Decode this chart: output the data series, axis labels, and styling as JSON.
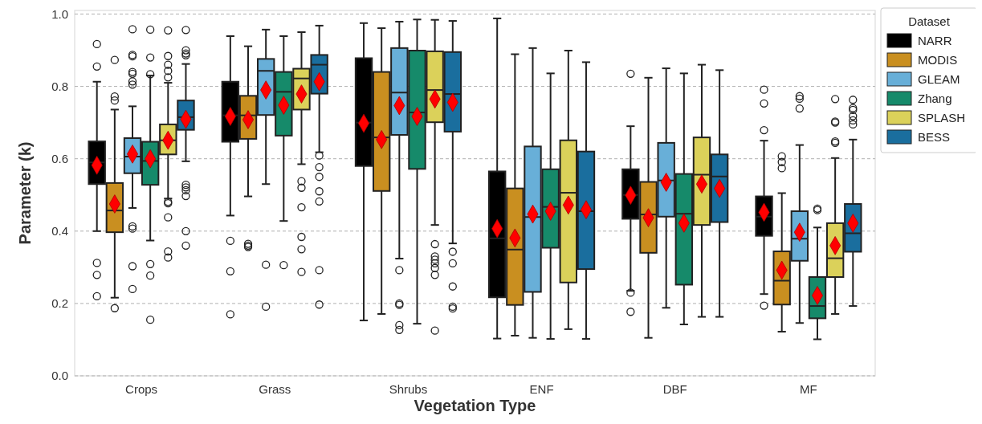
{
  "chart_data": {
    "type": "box",
    "xlabel": "Vegetation Type",
    "ylabel": "Parameter (k)",
    "legend_title": "Dataset",
    "legend": "top right",
    "grid": "y",
    "marker": "diamond",
    "categories": [
      "Crops",
      "Grass",
      "Shrubs",
      "ENF",
      "DBF",
      "MF"
    ],
    "ylim": [
      0,
      1.01
    ],
    "yticks": [
      {
        "value": 0,
        "label": "0.0"
      },
      {
        "value": 0.2,
        "label": "0.2"
      },
      {
        "value": 0.4,
        "label": "0.4"
      },
      {
        "value": 0.6,
        "label": "0.6"
      },
      {
        "value": 0.8,
        "label": "0.8"
      },
      {
        "value": 1,
        "label": "1.0"
      }
    ],
    "series": [
      {
        "name": "NARR",
        "color": "#000000",
        "boxes": [
          {
            "low": 0.4,
            "q1": 0.53,
            "median": 0.59,
            "q3": 0.648,
            "high": 0.813,
            "mean": 0.582,
            "outliers": [
              0.917,
              0.855,
              0.312,
              0.279,
              0.22
            ]
          },
          {
            "low": 0.443,
            "q1": 0.647,
            "median": 0.72,
            "q3": 0.813,
            "high": 0.939,
            "mean": 0.717,
            "outliers": [
              0.373,
              0.289,
              0.17
            ]
          },
          {
            "low": 0.153,
            "q1": 0.58,
            "median": 0.7,
            "q3": 0.878,
            "high": 0.975,
            "mean": 0.698
          },
          {
            "low": 0.103,
            "q1": 0.217,
            "median": 0.38,
            "q3": 0.565,
            "high": 0.988,
            "mean": 0.407
          },
          {
            "low": 0.235,
            "q1": 0.434,
            "median": 0.5,
            "q3": 0.571,
            "high": 0.69,
            "mean": 0.499,
            "outliers": [
              0.835,
              0.23,
              0.177
            ]
          },
          {
            "low": 0.226,
            "q1": 0.387,
            "median": 0.44,
            "q3": 0.496,
            "high": 0.65,
            "mean": 0.452,
            "outliers": [
              0.791,
              0.753,
              0.679,
              0.194
            ]
          }
        ]
      },
      {
        "name": "MODIS",
        "color": "#c98f20",
        "boxes": [
          {
            "low": 0.216,
            "q1": 0.397,
            "median": 0.457,
            "q3": 0.533,
            "high": 0.736,
            "mean": 0.475,
            "outliers": [
              0.873,
              0.772,
              0.761,
              0.187
            ]
          },
          {
            "low": 0.496,
            "q1": 0.655,
            "median": 0.72,
            "q3": 0.774,
            "high": 0.911,
            "mean": 0.708,
            "outliers": [
              0.365,
              0.36,
              0.356
            ]
          },
          {
            "low": 0.171,
            "q1": 0.511,
            "median": 0.659,
            "q3": 0.84,
            "high": 0.961,
            "mean": 0.653
          },
          {
            "low": 0.111,
            "q1": 0.196,
            "median": 0.349,
            "q3": 0.518,
            "high": 0.889,
            "mean": 0.381
          },
          {
            "low": 0.105,
            "q1": 0.34,
            "median": 0.446,
            "q3": 0.536,
            "high": 0.824,
            "mean": 0.437
          },
          {
            "low": 0.122,
            "q1": 0.197,
            "median": 0.263,
            "q3": 0.344,
            "high": 0.505,
            "mean": 0.292,
            "outliers": [
              0.607,
              0.591,
              0.574
            ]
          }
        ]
      },
      {
        "name": "GLEAM",
        "color": "#68afd8",
        "boxes": [
          {
            "low": 0.464,
            "q1": 0.56,
            "median": 0.606,
            "q3": 0.657,
            "high": 0.745,
            "mean": 0.613,
            "outliers": [
              0.958,
              0.887,
              0.883,
              0.84,
              0.835,
              0.814,
              0.805,
              0.413,
              0.407,
              0.303,
              0.24
            ]
          },
          {
            "low": 0.53,
            "q1": 0.721,
            "median": 0.843,
            "q3": 0.876,
            "high": 0.957,
            "mean": 0.79,
            "outliers": [
              0.307,
              0.191
            ]
          },
          {
            "low": 0.324,
            "q1": 0.666,
            "median": 0.783,
            "q3": 0.906,
            "high": 0.979,
            "mean": 0.747,
            "outliers": [
              0.292,
              0.2,
              0.196,
              0.14,
              0.127
            ]
          },
          {
            "low": 0.105,
            "q1": 0.232,
            "median": 0.439,
            "q3": 0.634,
            "high": 0.906,
            "mean": 0.447
          },
          {
            "low": 0.188,
            "q1": 0.44,
            "median": 0.54,
            "q3": 0.644,
            "high": 0.85,
            "mean": 0.535
          },
          {
            "low": 0.146,
            "q1": 0.318,
            "median": 0.379,
            "q3": 0.455,
            "high": 0.638,
            "mean": 0.397,
            "outliers": [
              0.773,
              0.766,
              0.739
            ]
          }
        ]
      },
      {
        "name": "Zhang",
        "color": "#168a6a",
        "boxes": [
          {
            "low": 0.374,
            "q1": 0.528,
            "median": 0.594,
            "q3": 0.647,
            "high": 0.83,
            "mean": 0.6,
            "outliers": [
              0.957,
              0.88,
              0.834,
              0.309,
              0.277,
              0.155
            ]
          },
          {
            "low": 0.428,
            "q1": 0.664,
            "median": 0.785,
            "q3": 0.84,
            "high": 0.939,
            "mean": 0.748,
            "outliers": [
              0.306
            ]
          },
          {
            "low": 0.144,
            "q1": 0.572,
            "median": 0.728,
            "q3": 0.899,
            "high": 0.985,
            "mean": 0.717
          },
          {
            "low": 0.102,
            "q1": 0.354,
            "median": 0.467,
            "q3": 0.571,
            "high": 0.836,
            "mean": 0.455
          },
          {
            "low": 0.142,
            "q1": 0.252,
            "median": 0.448,
            "q3": 0.558,
            "high": 0.836,
            "mean": 0.422
          },
          {
            "low": 0.101,
            "q1": 0.159,
            "median": 0.193,
            "q3": 0.273,
            "high": 0.41,
            "mean": 0.222,
            "outliers": [
              0.462,
              0.458
            ]
          }
        ]
      },
      {
        "name": "SPLASH",
        "color": "#dbd15a",
        "boxes": [
          {
            "low": 0.49,
            "q1": 0.612,
            "median": 0.651,
            "q3": 0.695,
            "high": 0.81,
            "mean": 0.651,
            "outliers": [
              0.955,
              0.884,
              0.86,
              0.843,
              0.825,
              0.481,
              0.477,
              0.438,
              0.344,
              0.327
            ]
          },
          {
            "low": 0.585,
            "q1": 0.736,
            "median": 0.822,
            "q3": 0.849,
            "high": 0.95,
            "mean": 0.779,
            "outliers": [
              0.538,
              0.52,
              0.466,
              0.384,
              0.35,
              0.287
            ]
          },
          {
            "low": 0.417,
            "q1": 0.701,
            "median": 0.79,
            "q3": 0.897,
            "high": 0.984,
            "mean": 0.765,
            "outliers": [
              0.364,
              0.33,
              0.321,
              0.311,
              0.298,
              0.279,
              0.125
            ]
          },
          {
            "low": 0.129,
            "q1": 0.258,
            "median": 0.506,
            "q3": 0.651,
            "high": 0.899,
            "mean": 0.472
          },
          {
            "low": 0.163,
            "q1": 0.417,
            "median": 0.556,
            "q3": 0.659,
            "high": 0.86,
            "mean": 0.53
          },
          {
            "low": 0.171,
            "q1": 0.273,
            "median": 0.325,
            "q3": 0.422,
            "high": 0.602,
            "mean": 0.36,
            "outliers": [
              0.765,
              0.703,
              0.7,
              0.648,
              0.644
            ]
          }
        ]
      },
      {
        "name": "BESS",
        "color": "#1a6e9e",
        "boxes": [
          {
            "low": 0.593,
            "q1": 0.68,
            "median": 0.715,
            "q3": 0.761,
            "high": 0.862,
            "mean": 0.709,
            "outliers": [
              0.956,
              0.9,
              0.891,
              0.886,
              0.528,
              0.521,
              0.513,
              0.497,
              0.4,
              0.36
            ]
          },
          {
            "low": 0.618,
            "q1": 0.78,
            "median": 0.86,
            "q3": 0.887,
            "high": 0.968,
            "mean": 0.813,
            "outliers": [
              0.609,
              0.577,
              0.55,
              0.51,
              0.482,
              0.292,
              0.197
            ]
          },
          {
            "low": 0.366,
            "q1": 0.675,
            "median": 0.779,
            "q3": 0.895,
            "high": 0.981,
            "mean": 0.756,
            "outliers": [
              0.343,
              0.311,
              0.247,
              0.191,
              0.186
            ]
          },
          {
            "low": 0.102,
            "q1": 0.295,
            "median": 0.455,
            "q3": 0.62,
            "high": 0.867,
            "mean": 0.459
          },
          {
            "low": 0.163,
            "q1": 0.425,
            "median": 0.551,
            "q3": 0.612,
            "high": 0.845,
            "mean": 0.518
          },
          {
            "low": 0.193,
            "q1": 0.343,
            "median": 0.394,
            "q3": 0.475,
            "high": 0.653,
            "mean": 0.422,
            "outliers": [
              0.763,
              0.74,
              0.735,
              0.718,
              0.706,
              0.695
            ]
          }
        ]
      }
    ]
  }
}
